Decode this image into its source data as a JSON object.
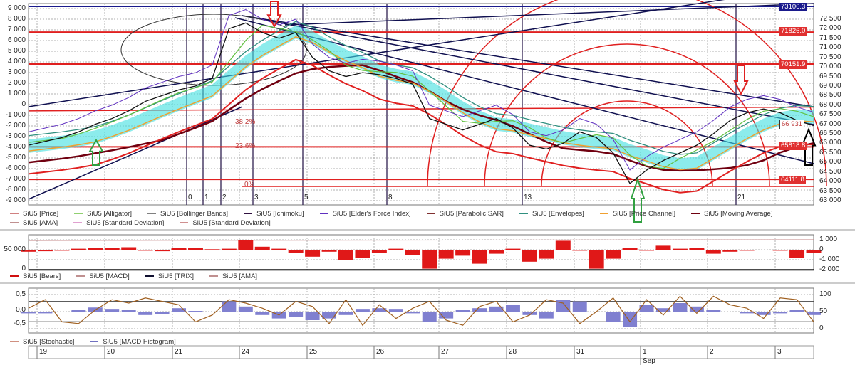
{
  "chart_data": [
    {
      "type": "line",
      "name": "main price panel",
      "left_axis": {
        "ticks": [
          "9 000",
          "8 000",
          "7 000",
          "6 000",
          "5 000",
          "4 000",
          "3 000",
          "2 000",
          "1 000",
          "0",
          "-1 000",
          "-2 000",
          "-3 000",
          "-4 000",
          "-5 000",
          "-6 000",
          "-7 000",
          "-8 000",
          "-9 000"
        ],
        "range": [
          -9000,
          9000
        ]
      },
      "right_axis": {
        "ticks": [
          "72 500",
          "72 000",
          "71 500",
          "71 000",
          "70 500",
          "70 000",
          "69 500",
          "69 000",
          "68 500",
          "68 000",
          "67 500",
          "67 000",
          "66 500",
          "66 000",
          "65 500",
          "65 000",
          "64 500",
          "64 000",
          "63 500",
          "63 000"
        ],
        "range": [
          63000,
          72500
        ]
      },
      "price_markers": [
        {
          "label": "73106.3",
          "color": "#1a1a8c"
        },
        {
          "label": "71826.0",
          "color": "#e03030",
          "value": 71826
        },
        {
          "label": "70151.9",
          "color": "#e03030",
          "value": 70151.9
        },
        {
          "label": "66 931",
          "color": "#ffffff",
          "value": 66931
        },
        {
          "label": "65818.8",
          "color": "#e03030",
          "value": 65818.8
        },
        {
          "label": "64111.8",
          "color": "#e03030",
          "value": 64111.8
        }
      ],
      "fib_levels": [
        "38.2%",
        "23.6%",
        "0%"
      ],
      "fib_time": [
        "0",
        "1",
        "2",
        "3",
        "5",
        "8",
        "13",
        "21"
      ],
      "price": [
        65900,
        66100,
        66300,
        66600,
        67000,
        67300,
        67700,
        68200,
        68500,
        68800,
        69000,
        69400,
        72000,
        72300,
        71800,
        71500,
        71800,
        70500,
        69800,
        69500,
        69700,
        69600,
        69400,
        69100,
        67300,
        67000,
        66700,
        67000,
        67300,
        66800,
        65900,
        65700,
        66000,
        66600,
        66300,
        65500,
        63900,
        64600,
        65100,
        65500,
        65900,
        66500,
        67200,
        67600,
        67800,
        67600,
        67200,
        66931
      ],
      "legend": [
        {
          "name": "SiU5 [Price]",
          "color": "#d08080"
        },
        {
          "name": "SiU5 [Alligator]",
          "color": "#90d070"
        },
        {
          "name": "SiU5 [Bollinger Bands]",
          "color": "#808080"
        },
        {
          "name": "SiU5 [Ichimoku]",
          "color": "#301040"
        },
        {
          "name": "SiU5 [Elder's Force Index]",
          "color": "#6030c0"
        },
        {
          "name": "SiU5 [Parabolic SAR]",
          "color": "#803030"
        },
        {
          "name": "SiU5 [Envelopes]",
          "color": "#309080"
        },
        {
          "name": "SiU5 [Price Channel]",
          "color": "#f0a030"
        },
        {
          "name": "SiU5 [Moving Average]",
          "color": "#700010"
        },
        {
          "name": "SiU5 [AMA]",
          "color": "#c09090"
        },
        {
          "name": "SiU5 [Standard Deviation]",
          "color": "#e0a0d0"
        },
        {
          "name": "SiU5 [Standard Deviation]",
          "color": "#d09090"
        }
      ]
    },
    {
      "type": "bar",
      "name": "bears panel",
      "left_axis": {
        "ticks": [
          "50 000",
          "0"
        ]
      },
      "right_axis": {
        "ticks": [
          "1 000",
          "0",
          "-1 000",
          "-2 000"
        ],
        "range": [
          -2000,
          1000
        ]
      },
      "values": [
        -200,
        -150,
        -100,
        100,
        150,
        200,
        250,
        -100,
        -150,
        150,
        200,
        50,
        100,
        1000,
        300,
        100,
        -300,
        -700,
        -200,
        -1000,
        -800,
        -300,
        100,
        -500,
        -1900,
        -900,
        -600,
        -1400,
        -400,
        100,
        -1200,
        -900,
        900,
        -100,
        -1900,
        -900,
        200,
        -100,
        400,
        100,
        200,
        -400,
        -200,
        -100,
        0,
        -100,
        -800,
        -300
      ],
      "legend": [
        {
          "name": "SiU5 [Bears]",
          "color": "#d01010"
        },
        {
          "name": "SiU5 [MACD]",
          "color": "#c09090"
        },
        {
          "name": "SiU5 [TRIX]",
          "color": "#101030"
        },
        {
          "name": "SiU5 [AMA]",
          "color": "#c09090"
        }
      ]
    },
    {
      "type": "bar+line",
      "name": "oscillator panel",
      "left_axis": {
        "ticks": [
          "0,5",
          "0,0",
          "-0,5"
        ]
      },
      "right_axis": {
        "ticks": [
          "100",
          "50",
          "0"
        ],
        "range": [
          0,
          100
        ]
      },
      "stochastic": [
        60,
        85,
        20,
        15,
        55,
        85,
        75,
        90,
        80,
        70,
        20,
        40,
        85,
        75,
        60,
        40,
        80,
        65,
        15,
        85,
        10,
        70,
        30,
        60,
        80,
        25,
        10,
        65,
        80,
        20,
        40,
        85,
        75,
        15,
        50,
        90,
        20,
        85,
        40,
        95,
        45,
        95,
        70,
        60,
        30,
        90,
        85,
        20
      ],
      "macd_histogram": [
        45,
        45,
        48,
        55,
        62,
        58,
        55,
        40,
        42,
        60,
        52,
        50,
        80,
        65,
        40,
        30,
        35,
        25,
        30,
        40,
        58,
        60,
        58,
        45,
        20,
        30,
        55,
        60,
        65,
        70,
        40,
        30,
        85,
        80,
        50,
        20,
        5,
        70,
        60,
        75,
        65,
        55,
        50,
        45,
        40,
        45,
        55,
        40
      ],
      "legend": [
        {
          "name": "SiU5 [Stochastic]",
          "color": "#d09080"
        },
        {
          "name": "SiU5 [MACD Histogram]",
          "color": "#7070c0"
        }
      ]
    }
  ],
  "date_axis": {
    "days": [
      "19",
      "20",
      "21",
      "24",
      "25",
      "26",
      "27",
      "28",
      "31",
      "1",
      "2",
      "3"
    ],
    "month": "Sep"
  },
  "colors": {
    "grid": "#b0b0b0",
    "red_level": "#e02020",
    "trend": "#101050",
    "cloud": "#40e0e0"
  }
}
